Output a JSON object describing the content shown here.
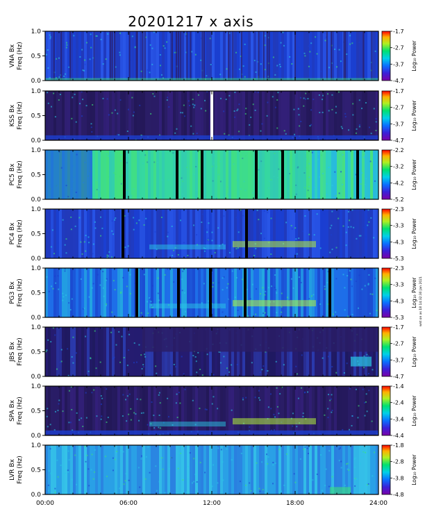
{
  "title": "20201217  x  axis",
  "side_note": "wnt on as 18 14:32:30 Jan 2021",
  "colorbar_label": "Log₁₀ Power",
  "y_ticks": [
    "0.0",
    "0.5",
    "1.0"
  ],
  "x_ticks": [
    "00:00",
    "06:00",
    "12:00",
    "18:00",
    "24:00"
  ],
  "colors": {
    "dark_background": "#2a1d66",
    "mid_blue": "#1b3fd0",
    "cyan": "#29c7e6",
    "green": "#3ee07a",
    "yellow_green": "#b4f03c",
    "gap": "#000000"
  },
  "chart_data": [
    {
      "type": "heatmap",
      "station": "VNA Bx",
      "ylabel": "Freq (Hz)",
      "xlim": [
        0,
        24
      ],
      "ylim": [
        0,
        1.0
      ],
      "cbar_ticks": [
        "-1.7",
        "-2.7",
        "-3.7",
        "-4.7"
      ],
      "clim": [
        -4.7,
        -1.7
      ],
      "background": "mid",
      "gaps": []
    },
    {
      "type": "heatmap",
      "station": "KSS Bx",
      "ylabel": "Freq (Hz)",
      "xlim": [
        0,
        24
      ],
      "ylim": [
        0,
        1.0
      ],
      "cbar_ticks": [
        "-1.7",
        "-2.7",
        "-3.7",
        "-4.7"
      ],
      "clim": [
        -4.7,
        -1.7
      ],
      "background": "dark",
      "gaps": [
        12.0
      ]
    },
    {
      "type": "heatmap",
      "station": "PC5 Bx",
      "ylabel": "Freq (Hz)",
      "xlim": [
        0,
        24
      ],
      "ylim": [
        0,
        1.0
      ],
      "cbar_ticks": [
        "-2.2",
        "-3.2",
        "-4.2",
        "-5.2"
      ],
      "clim": [
        -5.2,
        -2.2
      ],
      "background": "bright",
      "gaps": [
        5.7,
        9.5,
        11.3,
        15.2,
        17.1,
        22.5
      ]
    },
    {
      "type": "heatmap",
      "station": "PC4 Bx",
      "ylabel": "Freq (Hz)",
      "xlim": [
        0,
        24
      ],
      "ylim": [
        0,
        1.0
      ],
      "cbar_ticks": [
        "-2.3",
        "-3.3",
        "-4.3",
        "-5.3"
      ],
      "clim": [
        -5.3,
        -2.3
      ],
      "background": "mid",
      "gaps": [
        5.6,
        14.5
      ]
    },
    {
      "type": "heatmap",
      "station": "PG3 Bx",
      "ylabel": "Freq (Hz)",
      "xlim": [
        0,
        24
      ],
      "ylim": [
        0,
        1.0
      ],
      "cbar_ticks": [
        "-2.3",
        "-3.3",
        "-4.3",
        "-5.3"
      ],
      "clim": [
        -5.3,
        -2.3
      ],
      "background": "mixed",
      "gaps": [
        6.6,
        9.6,
        11.9,
        14.4,
        20.5
      ]
    },
    {
      "type": "heatmap",
      "station": "JBS Bx",
      "ylabel": "Freq (Hz)",
      "xlim": [
        0,
        24
      ],
      "ylim": [
        0,
        1.0
      ],
      "cbar_ticks": [
        "-1.7",
        "-2.7",
        "-3.7",
        "-4.7"
      ],
      "clim": [
        -4.7,
        -1.7
      ],
      "background": "darkmid",
      "gaps": []
    },
    {
      "type": "heatmap",
      "station": "SPA Bx",
      "ylabel": "Freq (Hz)",
      "xlim": [
        0,
        24
      ],
      "ylim": [
        0,
        1.0
      ],
      "cbar_ticks": [
        "-1.4",
        "-2.4",
        "-3.4",
        "-4.4"
      ],
      "clim": [
        -4.4,
        -1.4
      ],
      "background": "dark",
      "gaps": []
    },
    {
      "type": "heatmap",
      "station": "LVR Bx",
      "ylabel": "Freq (Hz)",
      "xlim": [
        0,
        24
      ],
      "ylim": [
        0,
        1.0
      ],
      "cbar_ticks": [
        "-1.8",
        "-2.8",
        "-3.8",
        "-4.8"
      ],
      "clim": [
        -4.8,
        -1.8
      ],
      "background": "light",
      "gaps": []
    }
  ]
}
